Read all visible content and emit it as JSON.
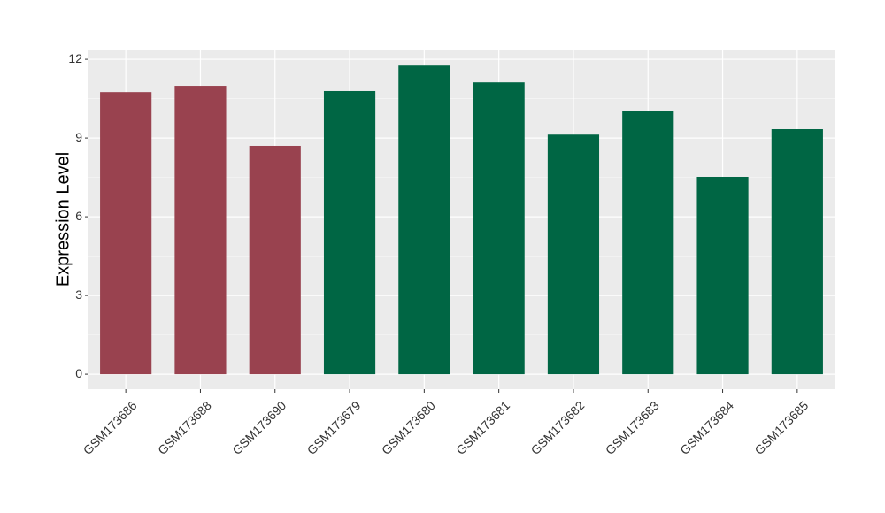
{
  "chart_data": {
    "type": "bar",
    "y_label": "Expression Level",
    "categories": [
      "GSM173686",
      "GSM173688",
      "GSM173690",
      "GSM173679",
      "GSM173680",
      "GSM173681",
      "GSM173682",
      "GSM173683",
      "GSM173684",
      "GSM173685"
    ],
    "values": [
      10.75,
      10.99,
      8.7,
      10.79,
      11.76,
      11.12,
      9.13,
      10.04,
      7.52,
      9.34
    ],
    "colors": [
      "#99424f",
      "#99424f",
      "#99424f",
      "#006644",
      "#006644",
      "#006644",
      "#006644",
      "#006644",
      "#006644",
      "#006644"
    ],
    "ylim": [
      -0.57,
      12.34
    ],
    "yticks": [
      0,
      3,
      6,
      9,
      12
    ],
    "grid": true
  }
}
